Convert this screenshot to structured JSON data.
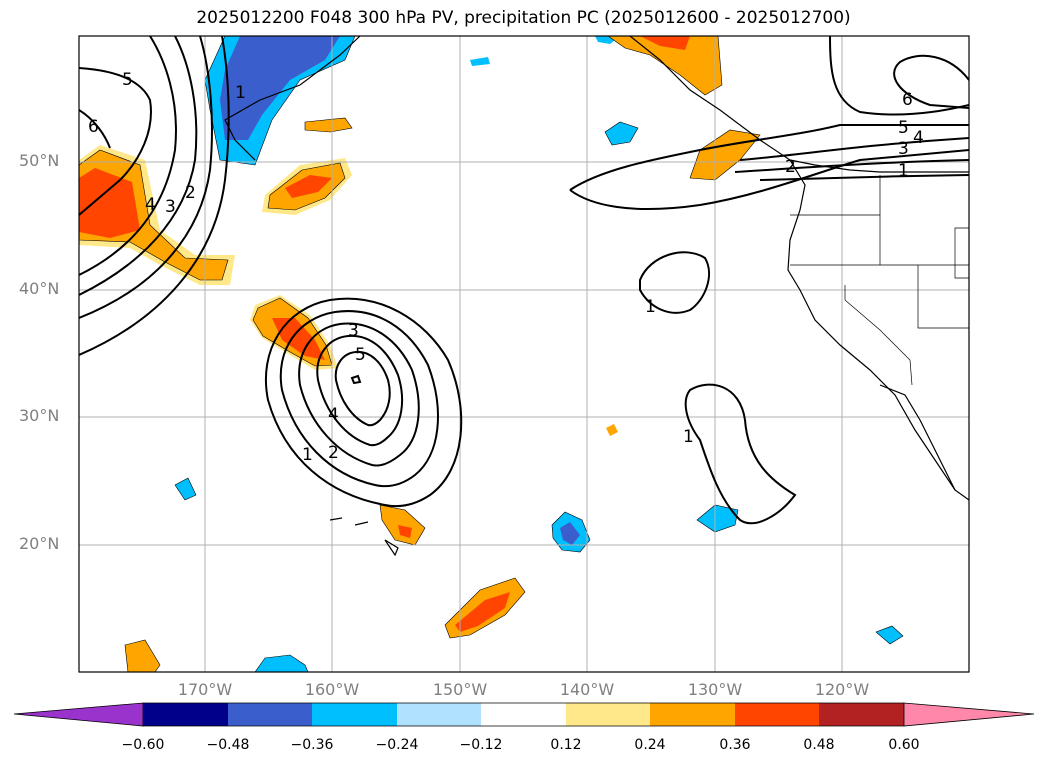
{
  "title": "2025012200 F048 300 hPa PV, precipitation PC (2025012600 - 2025012700)",
  "latitude_labels": [
    "50°N",
    "40°N",
    "30°N",
    "20°N"
  ],
  "longitude_labels": [
    "170°W",
    "160°W",
    "150°W",
    "140°W",
    "130°W",
    "120°W"
  ],
  "contour_labels": [
    "5",
    "6",
    "4",
    "3",
    "2",
    "1",
    "3",
    "5",
    "4",
    "2",
    "1",
    "1",
    "1",
    "6",
    "5",
    "4",
    "3",
    "1",
    "2"
  ],
  "colorbar": {
    "ticks": [
      "−0.60",
      "−0.48",
      "−0.36",
      "−0.24",
      "−0.12",
      "0.12",
      "0.24",
      "0.36",
      "0.48",
      "0.60"
    ],
    "colors": [
      "#9933cc",
      "#00008b",
      "#3a5fcd",
      "#00bfff",
      "#b0e2ff",
      "#ffffff",
      "#ffe88a",
      "#ffa500",
      "#ff4500",
      "#b22222",
      "#ff88aa"
    ]
  }
}
